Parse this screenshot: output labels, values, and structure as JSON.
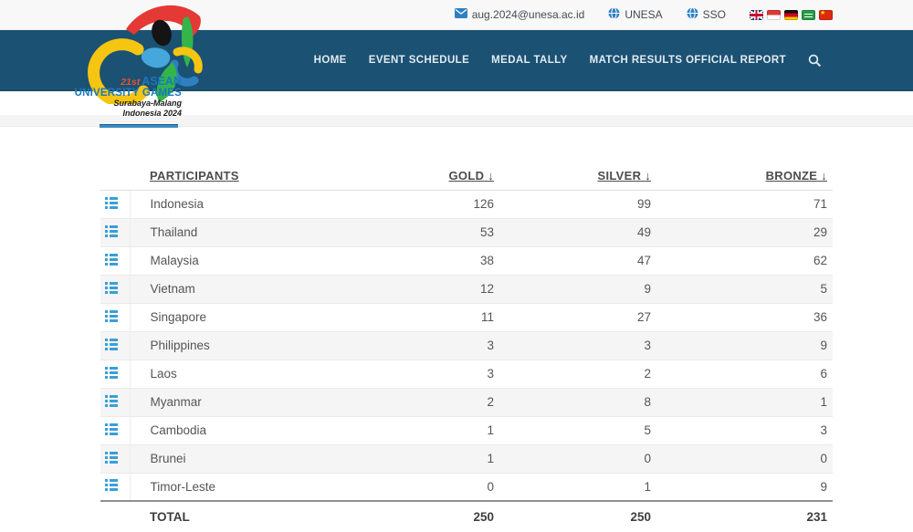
{
  "topbar": {
    "email": "aug.2024@unesa.ac.id",
    "unesa_label": "UNESA",
    "sso_label": "SSO",
    "flags": [
      "uk",
      "indonesia",
      "germany",
      "saudi-arabia",
      "china"
    ]
  },
  "nav": {
    "items": [
      "HOME",
      "EVENT SCHEDULE",
      "MEDAL TALLY",
      "MATCH RESULTS OFFICIAL REPORT"
    ]
  },
  "logo": {
    "edition": "21st",
    "title": "ASEAN",
    "subtitle": "UNIVERSITY GAMES",
    "location": "Surabaya-Malang",
    "year": "Indonesia 2024"
  },
  "table": {
    "headers": {
      "participants": "PARTICIPANTS",
      "gold": "GOLD",
      "silver": "SILVER",
      "bronze": "BRONZE",
      "sort_arrow": "↓"
    },
    "rows": [
      {
        "country": "Indonesia",
        "gold": 126,
        "silver": 99,
        "bronze": 71
      },
      {
        "country": "Thailand",
        "gold": 53,
        "silver": 49,
        "bronze": 29
      },
      {
        "country": "Malaysia",
        "gold": 38,
        "silver": 47,
        "bronze": 62
      },
      {
        "country": "Vietnam",
        "gold": 12,
        "silver": 9,
        "bronze": 5
      },
      {
        "country": "Singapore",
        "gold": 11,
        "silver": 27,
        "bronze": 36
      },
      {
        "country": "Philippines",
        "gold": 3,
        "silver": 3,
        "bronze": 9
      },
      {
        "country": "Laos",
        "gold": 3,
        "silver": 2,
        "bronze": 6
      },
      {
        "country": "Myanmar",
        "gold": 2,
        "silver": 8,
        "bronze": 1
      },
      {
        "country": "Cambodia",
        "gold": 1,
        "silver": 5,
        "bronze": 3
      },
      {
        "country": "Brunei",
        "gold": 1,
        "silver": 0,
        "bronze": 0
      },
      {
        "country": "Timor-Leste",
        "gold": 0,
        "silver": 1,
        "bronze": 9
      }
    ],
    "total": {
      "label": "TOTAL",
      "gold": 250,
      "silver": 250,
      "bronze": 231
    }
  },
  "colors": {
    "navbar": "#1b5173",
    "icon_blue": "#3b9fd8",
    "active_underline": "#3a8cbf"
  }
}
